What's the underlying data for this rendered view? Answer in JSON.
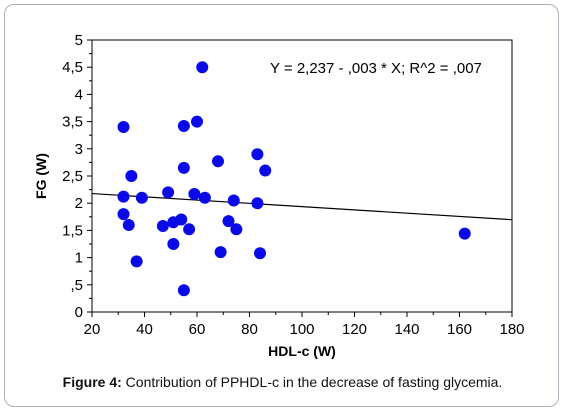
{
  "chart_data": {
    "type": "scatter",
    "xlabel": "HDL-c (W)",
    "ylabel": "FG (W)",
    "xlim": [
      20,
      180
    ],
    "ylim": [
      0,
      5
    ],
    "xticks": [
      "20",
      "40",
      "60",
      "80",
      "100",
      "120",
      "140",
      "160",
      "180"
    ],
    "yticks": [
      "0",
      ",5",
      "1",
      "1,5",
      "2",
      "2,5",
      "3",
      "3,5",
      "4",
      "4,5",
      "5"
    ],
    "grid": false,
    "annotation": "Y = 2,237 - ,003 * X; R^2 = ,007",
    "fit_line": {
      "intercept": 2.237,
      "slope": -0.003
    },
    "point_color": "#0a0ae6",
    "points": [
      {
        "x": 32,
        "y": 3.4
      },
      {
        "x": 32,
        "y": 2.12
      },
      {
        "x": 32,
        "y": 1.8
      },
      {
        "x": 34,
        "y": 1.6
      },
      {
        "x": 35,
        "y": 2.5
      },
      {
        "x": 37,
        "y": 0.93
      },
      {
        "x": 39,
        "y": 2.1
      },
      {
        "x": 47,
        "y": 1.58
      },
      {
        "x": 49,
        "y": 2.2
      },
      {
        "x": 51,
        "y": 1.25
      },
      {
        "x": 51,
        "y": 1.65
      },
      {
        "x": 54,
        "y": 1.7
      },
      {
        "x": 55,
        "y": 3.42
      },
      {
        "x": 55,
        "y": 2.65
      },
      {
        "x": 55,
        "y": 0.4
      },
      {
        "x": 57,
        "y": 1.52
      },
      {
        "x": 59,
        "y": 2.17
      },
      {
        "x": 60,
        "y": 3.5
      },
      {
        "x": 62,
        "y": 4.5
      },
      {
        "x": 63,
        "y": 2.1
      },
      {
        "x": 68,
        "y": 2.77
      },
      {
        "x": 69,
        "y": 1.1
      },
      {
        "x": 72,
        "y": 1.67
      },
      {
        "x": 74,
        "y": 2.05
      },
      {
        "x": 75,
        "y": 1.52
      },
      {
        "x": 83,
        "y": 2.9
      },
      {
        "x": 83,
        "y": 2.0
      },
      {
        "x": 84,
        "y": 1.08
      },
      {
        "x": 86,
        "y": 2.6
      },
      {
        "x": 162,
        "y": 1.44
      }
    ]
  },
  "caption": {
    "label": "Figure 4:",
    "text": " Contribution of PPHDL-c in the decrease of fasting glycemia."
  }
}
